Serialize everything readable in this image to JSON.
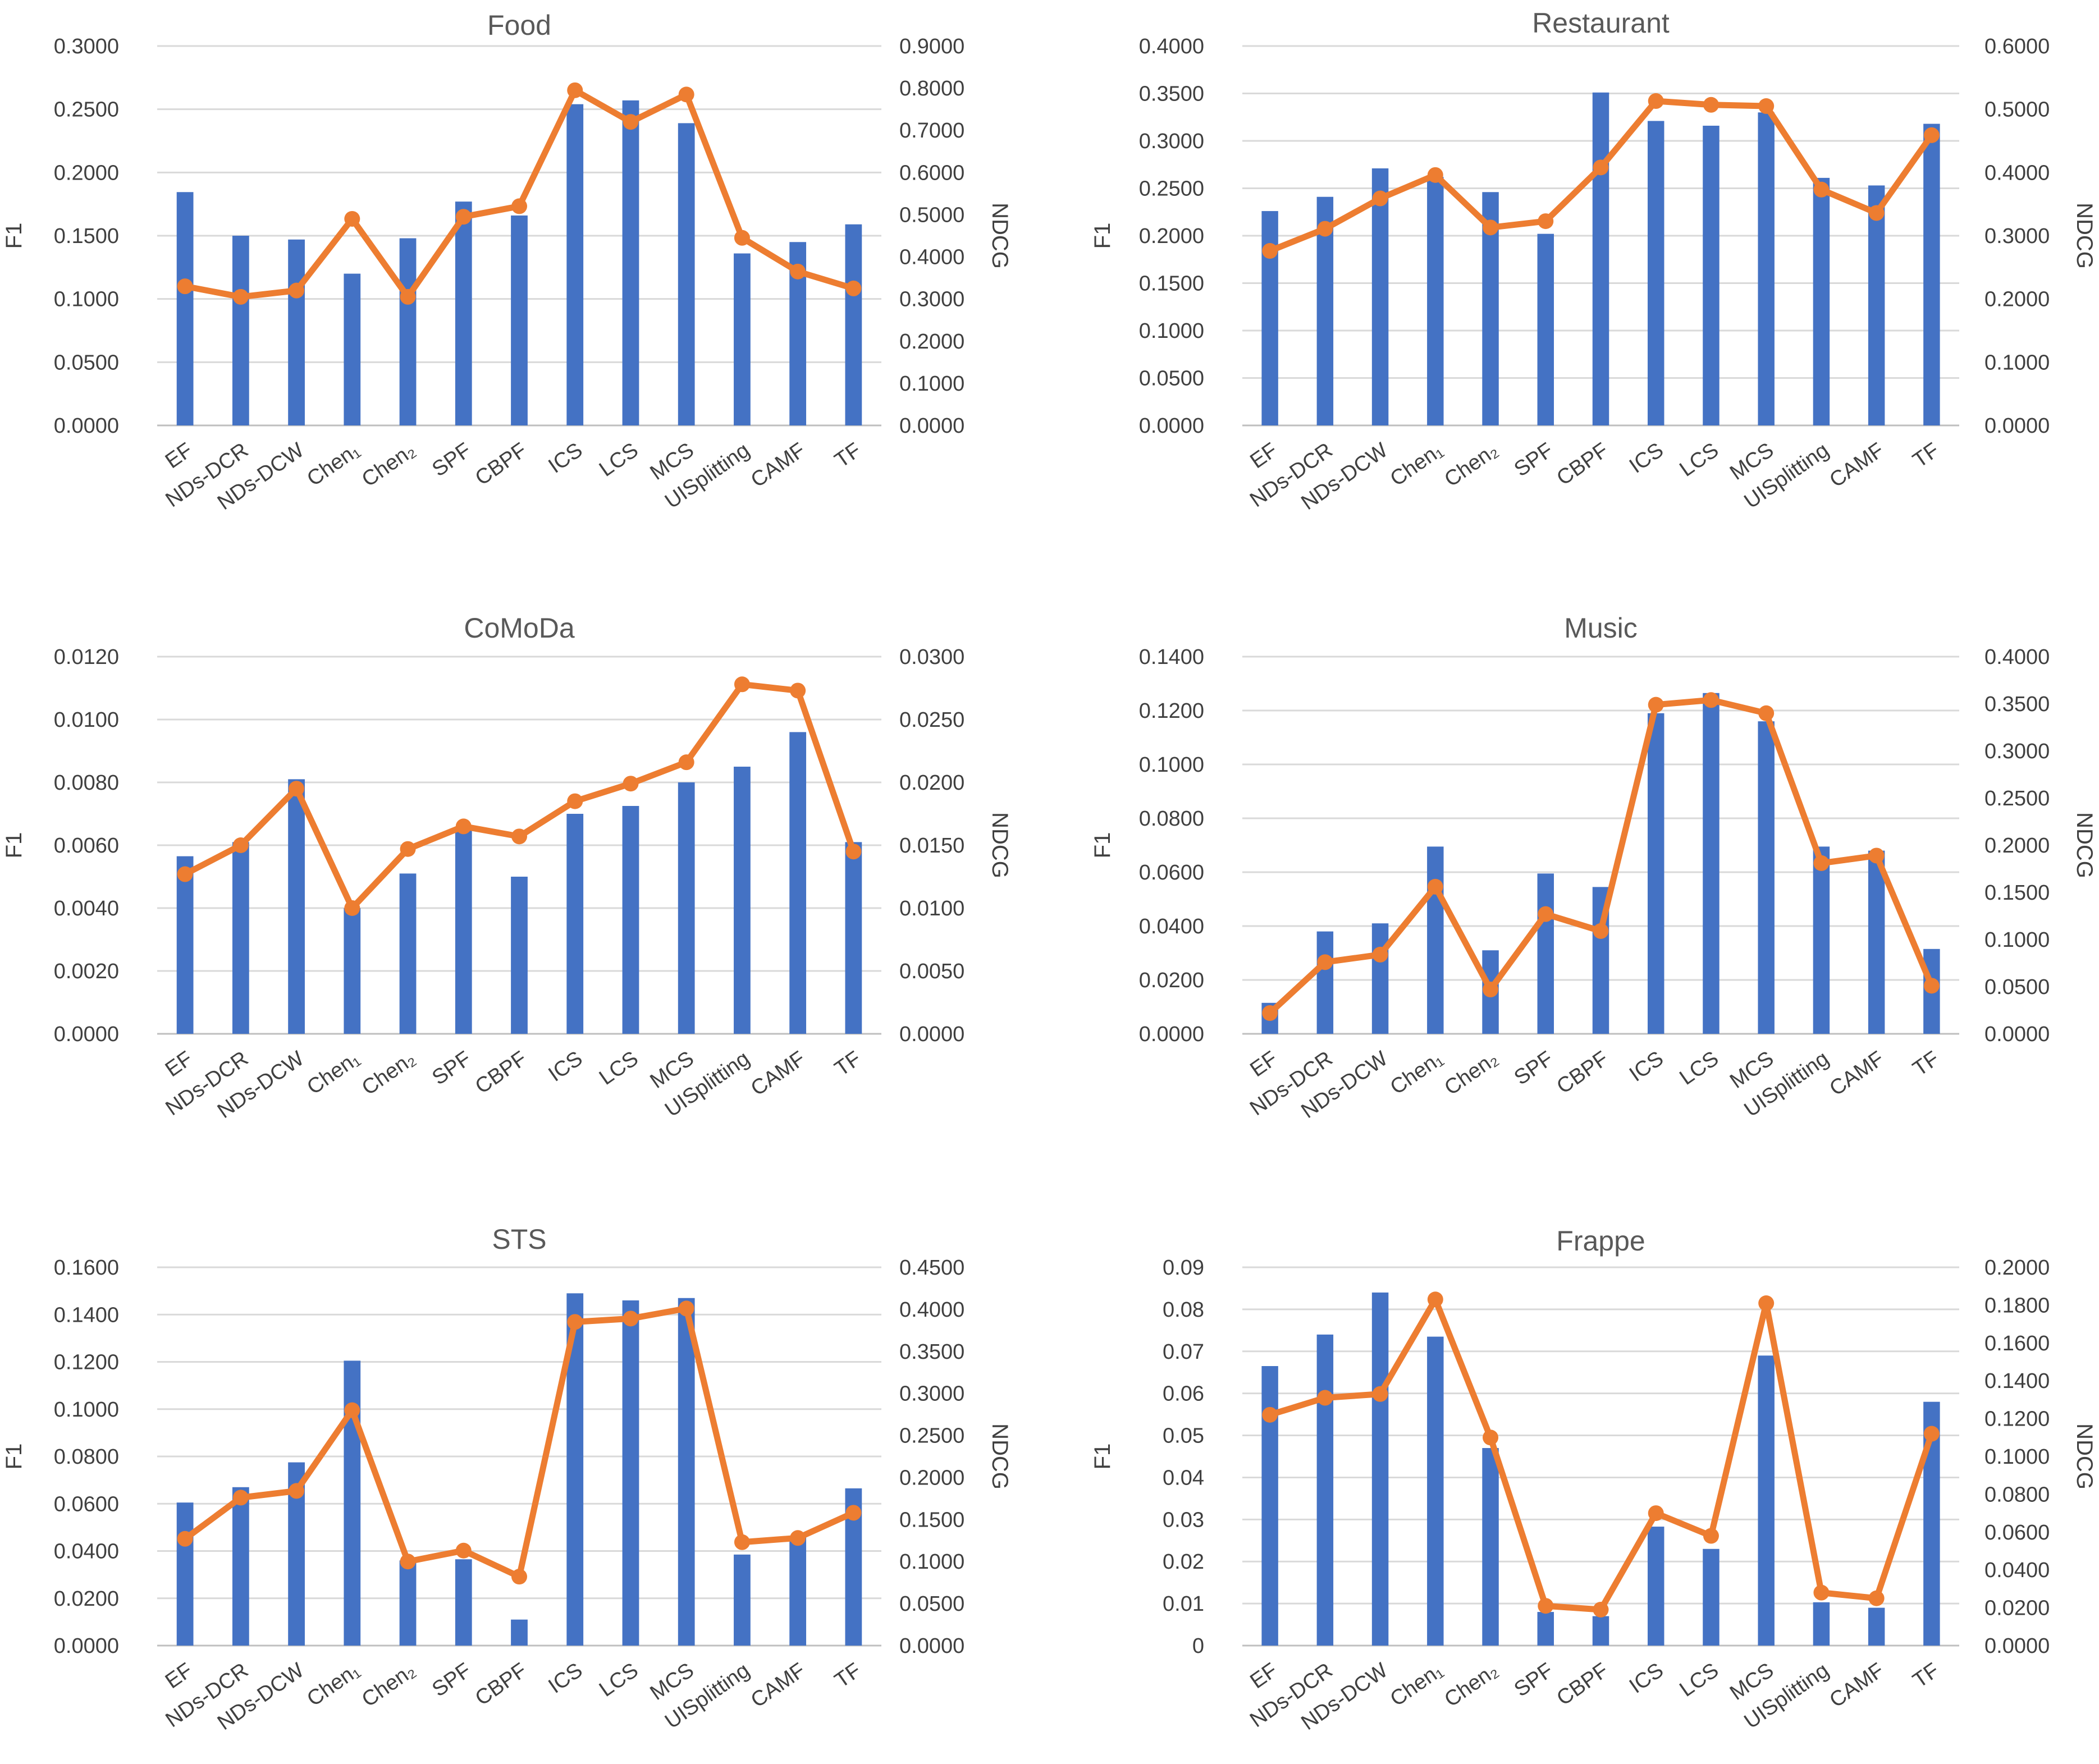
{
  "colors": {
    "bar": "#4472C4",
    "line": "#ED7D31"
  },
  "chart_data": [
    {
      "type": "bar+line",
      "title": "Food",
      "categories": [
        "EF",
        "NDs-DCR",
        "NDs-DCW",
        "Chen₁",
        "Chen₂",
        "SPF",
        "CBPF",
        "ICS",
        "LCS",
        "MCS",
        "UISplitting",
        "CAMF",
        "TF"
      ],
      "ylabel": "F1",
      "y2label": "NDCG",
      "y_ticks": [
        "0.0000",
        "0.0500",
        "0.1000",
        "0.1500",
        "0.2000",
        "0.2500",
        "0.3000"
      ],
      "y2_ticks": [
        "0.0000",
        "0.1000",
        "0.2000",
        "0.3000",
        "0.4000",
        "0.5000",
        "0.6000",
        "0.7000",
        "0.8000",
        "0.9000"
      ],
      "ylim": [
        0,
        0.3
      ],
      "y2lim": [
        0,
        0.9
      ],
      "series": [
        {
          "name": "F1",
          "kind": "bar",
          "axis": "left",
          "values": [
            0.1845,
            0.15,
            0.147,
            0.12,
            0.148,
            0.177,
            0.166,
            0.254,
            0.257,
            0.239,
            0.136,
            0.145,
            0.159
          ]
        },
        {
          "name": "NDCG",
          "kind": "line",
          "axis": "right",
          "values": [
            0.33,
            0.305,
            0.32,
            0.49,
            0.305,
            0.495,
            0.52,
            0.795,
            0.72,
            0.785,
            0.445,
            0.365,
            0.325
          ]
        }
      ]
    },
    {
      "type": "bar+line",
      "title": "Restaurant",
      "categories": [
        "EF",
        "NDs-DCR",
        "NDs-DCW",
        "Chen₁",
        "Chen₂",
        "SPF",
        "CBPF",
        "ICS",
        "LCS",
        "MCS",
        "UISplitting",
        "CAMF",
        "TF"
      ],
      "ylabel": "F1",
      "y2label": "NDCG",
      "y_ticks": [
        "0.0000",
        "0.0500",
        "0.1000",
        "0.1500",
        "0.2000",
        "0.2500",
        "0.3000",
        "0.3500",
        "0.4000"
      ],
      "y2_ticks": [
        "0.0000",
        "0.1000",
        "0.2000",
        "0.3000",
        "0.4000",
        "0.5000",
        "0.6000"
      ],
      "ylim": [
        0,
        0.4
      ],
      "y2lim": [
        0,
        0.6
      ],
      "series": [
        {
          "name": "F1",
          "kind": "bar",
          "axis": "left",
          "values": [
            0.226,
            0.241,
            0.271,
            0.262,
            0.246,
            0.202,
            0.351,
            0.321,
            0.316,
            0.33,
            0.261,
            0.253,
            0.318
          ]
        },
        {
          "name": "NDCG",
          "kind": "line",
          "axis": "right",
          "values": [
            0.276,
            0.311,
            0.359,
            0.396,
            0.313,
            0.323,
            0.408,
            0.513,
            0.507,
            0.505,
            0.373,
            0.336,
            0.459
          ]
        }
      ]
    },
    {
      "type": "bar+line",
      "title": "CoMoDa",
      "categories": [
        "EF",
        "NDs-DCR",
        "NDs-DCW",
        "Chen₁",
        "Chen₂",
        "SPF",
        "CBPF",
        "ICS",
        "LCS",
        "MCS",
        "UISplitting",
        "CAMF",
        "TF"
      ],
      "ylabel": "F1",
      "y2label": "NDCG",
      "y_ticks": [
        "0.0000",
        "0.0020",
        "0.0040",
        "0.0060",
        "0.0080",
        "0.0100",
        "0.0120"
      ],
      "y2_ticks": [
        "0.0000",
        "0.0050",
        "0.0100",
        "0.0150",
        "0.0200",
        "0.0250",
        "0.0300"
      ],
      "ylim": [
        0,
        0.012
      ],
      "y2lim": [
        0,
        0.03
      ],
      "series": [
        {
          "name": "F1",
          "kind": "bar",
          "axis": "left",
          "values": [
            0.00565,
            0.0061,
            0.0081,
            0.004,
            0.0051,
            0.0066,
            0.005,
            0.007,
            0.00725,
            0.008,
            0.0085,
            0.0096,
            0.0061
          ]
        },
        {
          "name": "NDCG",
          "kind": "line",
          "axis": "right",
          "values": [
            0.0127,
            0.015,
            0.0195,
            0.01,
            0.0147,
            0.0165,
            0.0157,
            0.0185,
            0.0199,
            0.0216,
            0.0278,
            0.0273,
            0.0145
          ]
        }
      ]
    },
    {
      "type": "bar+line",
      "title": "Music",
      "categories": [
        "EF",
        "NDs-DCR",
        "NDs-DCW",
        "Chen₁",
        "Chen₂",
        "SPF",
        "CBPF",
        "ICS",
        "LCS",
        "MCS",
        "UISplitting",
        "CAMF",
        "TF"
      ],
      "ylabel": "F1",
      "y2label": "NDCG",
      "y_ticks": [
        "0.0000",
        "0.0200",
        "0.0400",
        "0.0600",
        "0.0800",
        "0.1000",
        "0.1200",
        "0.1400"
      ],
      "y2_ticks": [
        "0.0000",
        "0.0500",
        "0.1000",
        "0.1500",
        "0.2000",
        "0.2500",
        "0.3000",
        "0.3500",
        "0.4000"
      ],
      "ylim": [
        0,
        0.14
      ],
      "y2lim": [
        0,
        0.4
      ],
      "series": [
        {
          "name": "F1",
          "kind": "bar",
          "axis": "left",
          "values": [
            0.0115,
            0.038,
            0.041,
            0.0695,
            0.031,
            0.0595,
            0.0545,
            0.119,
            0.1265,
            0.116,
            0.0695,
            0.068,
            0.0315
          ]
        },
        {
          "name": "NDCG",
          "kind": "line",
          "axis": "right",
          "values": [
            0.022,
            0.076,
            0.084,
            0.156,
            0.047,
            0.127,
            0.109,
            0.349,
            0.354,
            0.34,
            0.181,
            0.189,
            0.051
          ]
        }
      ]
    },
    {
      "type": "bar+line",
      "title": "STS",
      "categories": [
        "EF",
        "NDs-DCR",
        "NDs-DCW",
        "Chen₁",
        "Chen₂",
        "SPF",
        "CBPF",
        "ICS",
        "LCS",
        "MCS",
        "UISplitting",
        "CAMF",
        "TF"
      ],
      "ylabel": "F1",
      "y2label": "NDCG",
      "y_ticks": [
        "0.0000",
        "0.0200",
        "0.0400",
        "0.0600",
        "0.0800",
        "0.1000",
        "0.1200",
        "0.1400",
        "0.1600"
      ],
      "y2_ticks": [
        "0.0000",
        "0.0500",
        "0.1000",
        "0.1500",
        "0.2000",
        "0.2500",
        "0.3000",
        "0.3500",
        "0.4000",
        "0.4500"
      ],
      "ylim": [
        0,
        0.16
      ],
      "y2lim": [
        0,
        0.45
      ],
      "series": [
        {
          "name": "F1",
          "kind": "bar",
          "axis": "left",
          "values": [
            0.0605,
            0.067,
            0.0775,
            0.1205,
            0.036,
            0.0365,
            0.011,
            0.149,
            0.146,
            0.147,
            0.0385,
            0.046,
            0.0665
          ]
        },
        {
          "name": "NDCG",
          "kind": "line",
          "axis": "right",
          "values": [
            0.127,
            0.176,
            0.184,
            0.28,
            0.1,
            0.113,
            0.082,
            0.385,
            0.389,
            0.401,
            0.123,
            0.128,
            0.158
          ]
        }
      ]
    },
    {
      "type": "bar+line",
      "title": "Frappe",
      "categories": [
        "EF",
        "NDs-DCR",
        "NDs-DCW",
        "Chen₁",
        "Chen₂",
        "SPF",
        "CBPF",
        "ICS",
        "LCS",
        "MCS",
        "UISplitting",
        "CAMF",
        "TF"
      ],
      "ylabel": "F1",
      "y2label": "NDCG",
      "y_ticks": [
        "0",
        "0.01",
        "0.02",
        "0.03",
        "0.04",
        "0.05",
        "0.06",
        "0.07",
        "0.08",
        "0.09"
      ],
      "y2_ticks": [
        "0.0000",
        "0.0200",
        "0.0400",
        "0.0600",
        "0.0800",
        "0.1000",
        "0.1200",
        "0.1400",
        "0.1600",
        "0.1800",
        "0.2000"
      ],
      "ylim": [
        0,
        0.09
      ],
      "y2lim": [
        0,
        0.2
      ],
      "series": [
        {
          "name": "F1",
          "kind": "bar",
          "axis": "left",
          "values": [
            0.0665,
            0.074,
            0.084,
            0.0735,
            0.047,
            0.008,
            0.007,
            0.0283,
            0.023,
            0.069,
            0.0103,
            0.009,
            0.058
          ]
        },
        {
          "name": "NDCG",
          "kind": "line",
          "axis": "right",
          "values": [
            0.122,
            0.131,
            0.133,
            0.183,
            0.11,
            0.021,
            0.019,
            0.07,
            0.058,
            0.181,
            0.028,
            0.025,
            0.112
          ]
        }
      ]
    }
  ]
}
